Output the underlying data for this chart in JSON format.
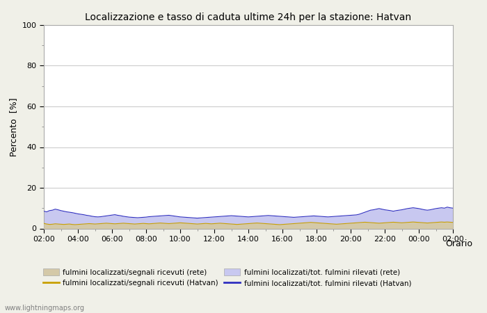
{
  "title": "Localizzazione e tasso di caduta ultime 24h per la stazione: Hatvan",
  "xlabel": "Orario",
  "ylabel": "Percento  [%]",
  "ylim": [
    0,
    100
  ],
  "yticks": [
    0,
    20,
    40,
    60,
    80,
    100
  ],
  "x_labels": [
    "02:00",
    "04:00",
    "06:00",
    "08:00",
    "10:00",
    "12:00",
    "14:00",
    "16:00",
    "18:00",
    "20:00",
    "22:00",
    "00:00",
    "02:00"
  ],
  "n_points": 145,
  "background_color": "#f0f0e8",
  "plot_bg_color": "#ffffff",
  "grid_color": "#cccccc",
  "fill_rete_color": "#d4c9a8",
  "fill_hatvan_color": "#c8c8f0",
  "line_rete_color": "#c8a000",
  "line_hatvan_color": "#3030c0",
  "watermark": "www.lightningmaps.org",
  "legend": [
    {
      "label": "fulmini localizzati/segnali ricevuti (rete)",
      "type": "fill",
      "color": "#d4c9a8"
    },
    {
      "label": "fulmini localizzati/segnali ricevuti (Hatvan)",
      "type": "line",
      "color": "#c8a000"
    },
    {
      "label": "fulmini localizzati/tot. fulmini rilevati (rete)",
      "type": "fill",
      "color": "#c8c8f0"
    },
    {
      "label": "fulmini localizzati/tot. fulmini rilevati (Hatvan)",
      "type": "line",
      "color": "#3030c0"
    }
  ],
  "rete_signal_values": [
    2.5,
    2.2,
    2.0,
    2.1,
    2.3,
    2.2,
    2.1,
    2.0,
    2.1,
    2.2,
    2.0,
    1.9,
    2.0,
    2.1,
    2.2,
    2.3,
    2.4,
    2.3,
    2.2,
    2.3,
    2.4,
    2.5,
    2.6,
    2.5,
    2.4,
    2.3,
    2.4,
    2.5,
    2.6,
    2.5,
    2.4,
    2.3,
    2.2,
    2.3,
    2.4,
    2.5,
    2.4,
    2.3,
    2.4,
    2.5,
    2.6,
    2.7,
    2.6,
    2.5,
    2.4,
    2.5,
    2.6,
    2.7,
    2.8,
    2.7,
    2.6,
    2.5,
    2.4,
    2.3,
    2.2,
    2.3,
    2.4,
    2.5,
    2.4,
    2.3,
    2.4,
    2.5,
    2.6,
    2.5,
    2.4,
    2.3,
    2.2,
    2.1,
    2.0,
    2.1,
    2.2,
    2.3,
    2.4,
    2.5,
    2.6,
    2.7,
    2.6,
    2.5,
    2.4,
    2.3,
    2.2,
    2.1,
    2.0,
    1.9,
    2.0,
    2.1,
    2.2,
    2.3,
    2.4,
    2.5,
    2.6,
    2.7,
    2.8,
    2.9,
    3.0,
    2.9,
    2.8,
    2.7,
    2.6,
    2.5,
    2.4,
    2.3,
    2.2,
    2.1,
    2.2,
    2.3,
    2.4,
    2.5,
    2.6,
    2.7,
    2.8,
    2.9,
    3.0,
    3.1,
    3.0,
    2.9,
    2.8,
    2.7,
    2.6,
    2.7,
    2.8,
    2.9,
    3.0,
    3.1,
    3.0,
    2.9,
    2.8,
    2.9,
    3.0,
    3.1,
    3.2,
    3.1,
    3.0,
    2.9,
    2.8,
    2.7,
    2.8,
    2.9,
    3.0,
    3.1,
    3.2,
    3.1,
    3.2,
    3.1,
    3.0
  ],
  "hatvan_total_values": [
    8.5,
    8.2,
    8.8,
    9.0,
    9.5,
    9.2,
    8.8,
    8.5,
    8.2,
    8.0,
    7.8,
    7.5,
    7.2,
    7.0,
    6.8,
    6.5,
    6.3,
    6.0,
    5.8,
    5.7,
    5.8,
    6.0,
    6.2,
    6.4,
    6.6,
    6.8,
    6.5,
    6.3,
    6.0,
    5.8,
    5.6,
    5.5,
    5.4,
    5.3,
    5.4,
    5.5,
    5.6,
    5.8,
    5.9,
    6.0,
    6.1,
    6.2,
    6.3,
    6.4,
    6.5,
    6.3,
    6.1,
    5.9,
    5.7,
    5.6,
    5.5,
    5.4,
    5.3,
    5.2,
    5.1,
    5.2,
    5.3,
    5.4,
    5.5,
    5.6,
    5.7,
    5.8,
    5.9,
    6.0,
    6.1,
    6.2,
    6.3,
    6.2,
    6.1,
    6.0,
    5.9,
    5.8,
    5.7,
    5.8,
    5.9,
    6.0,
    6.1,
    6.2,
    6.3,
    6.4,
    6.3,
    6.2,
    6.1,
    6.0,
    5.9,
    5.8,
    5.7,
    5.6,
    5.5,
    5.6,
    5.7,
    5.8,
    5.9,
    6.0,
    6.1,
    6.2,
    6.1,
    6.0,
    5.9,
    5.8,
    5.7,
    5.8,
    5.9,
    6.0,
    6.1,
    6.2,
    6.3,
    6.4,
    6.5,
    6.6,
    6.7,
    7.0,
    7.5,
    8.0,
    8.5,
    9.0,
    9.2,
    9.5,
    9.8,
    9.5,
    9.2,
    9.0,
    8.8,
    8.5,
    8.8,
    9.0,
    9.2,
    9.5,
    9.8,
    10.0,
    10.2,
    10.0,
    9.8,
    9.5,
    9.2,
    9.0,
    9.2,
    9.5,
    9.8,
    10.0,
    10.2,
    10.0,
    10.5,
    10.2,
    10.0
  ]
}
